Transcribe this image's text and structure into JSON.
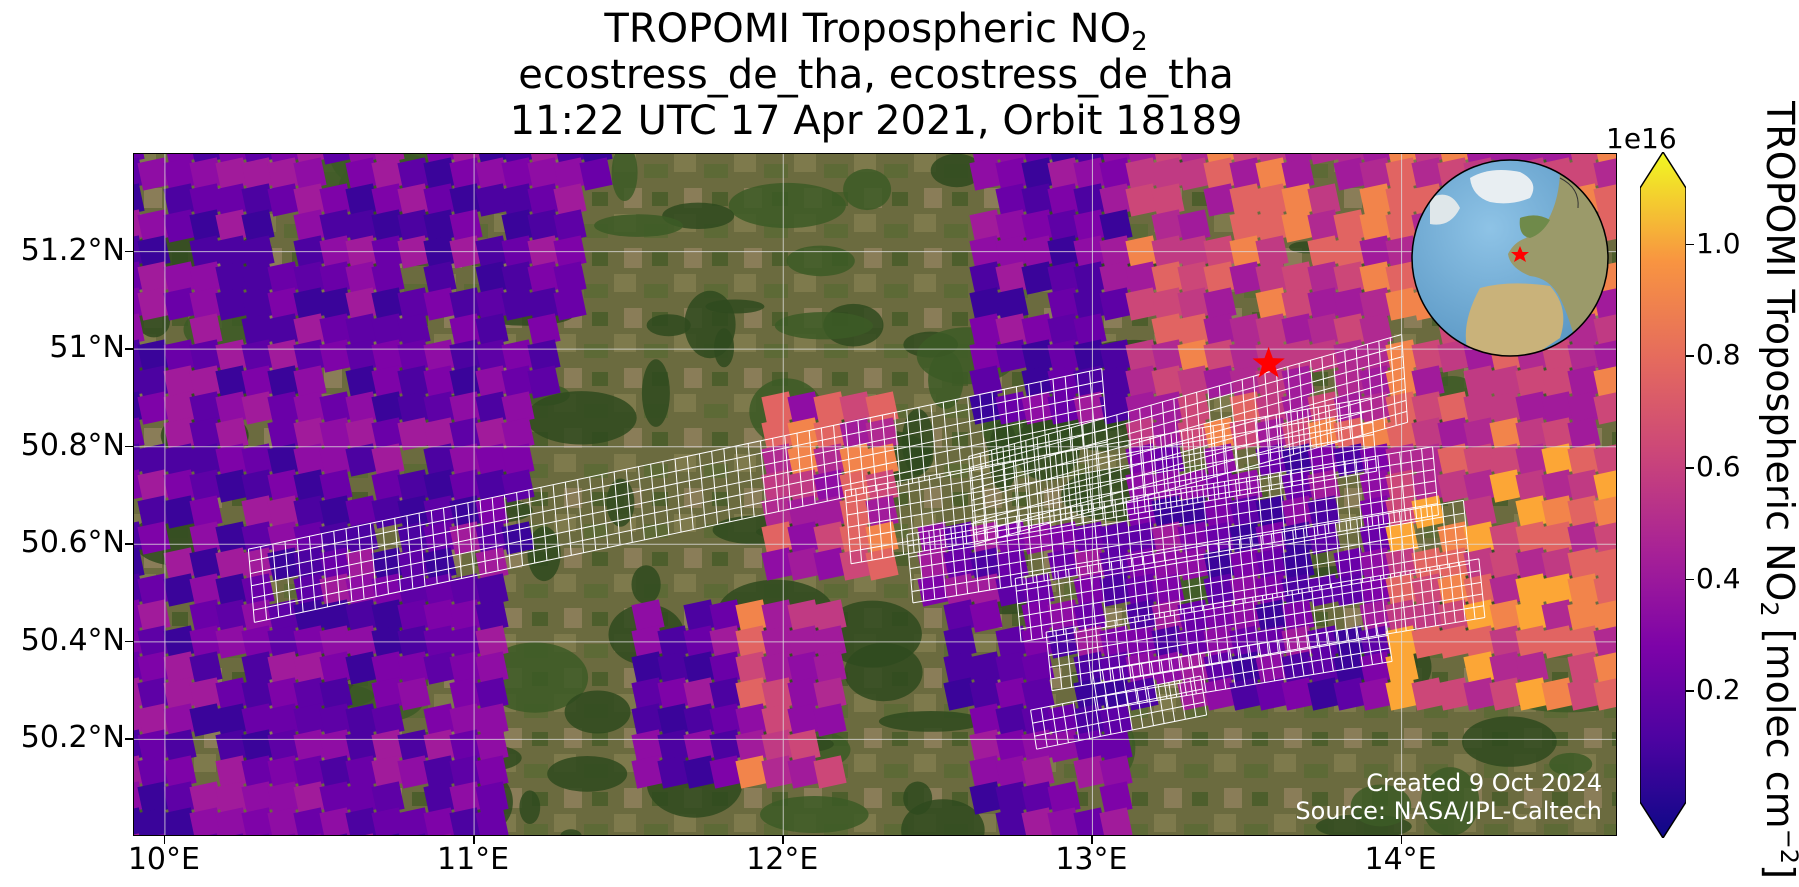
{
  "title": {
    "line1_main": "TROPOMI Tropospheric NO",
    "line1_sub": "2",
    "line2": "ecostress_de_tha, ecostress_de_tha",
    "line3": "11:22 UTC 17 Apr 2021, Orbit 18189"
  },
  "map": {
    "lon_range": [
      9.9,
      14.7
    ],
    "lat_range": [
      50.0,
      51.4
    ],
    "lat_ticks": [
      {
        "value": 51.2,
        "label": "51.2°N"
      },
      {
        "value": 51.0,
        "label": "51°N"
      },
      {
        "value": 50.8,
        "label": "50.8°N"
      },
      {
        "value": 50.6,
        "label": "50.6°N"
      },
      {
        "value": 50.4,
        "label": "50.4°N"
      },
      {
        "value": 50.2,
        "label": "50.2°N"
      }
    ],
    "lon_ticks": [
      {
        "value": 10,
        "label": "10°E"
      },
      {
        "value": 11,
        "label": "11°E"
      },
      {
        "value": 12,
        "label": "12°E"
      },
      {
        "value": 13,
        "label": "13°E"
      },
      {
        "value": 14,
        "label": "14°E"
      }
    ],
    "target_marker": {
      "lon": 13.57,
      "lat": 50.97,
      "color": "#ff0000",
      "icon": "star-icon"
    },
    "grid": true,
    "basemap_colors": {
      "forest": "#2f4a1e",
      "field": "#7a7a4a",
      "urban": "#8a7a66"
    }
  },
  "credits": {
    "created": "Created 9 Oct 2024",
    "source": "Source: NASA/JPL-Caltech"
  },
  "colorbar": {
    "exponent": "1e16",
    "label_main": "TROPOMI Tropospheric NO",
    "label_sub": "2",
    "label_units": " [molec cm",
    "label_sup": "−2",
    "label_close": "]",
    "range": [
      0.0,
      1.1
    ],
    "ticks": [
      {
        "value": 1.0,
        "label": "1.0"
      },
      {
        "value": 0.8,
        "label": "0.8"
      },
      {
        "value": 0.6,
        "label": "0.6"
      },
      {
        "value": 0.4,
        "label": "0.4"
      },
      {
        "value": 0.2,
        "label": "0.2"
      }
    ],
    "colormap": "plasma",
    "extend": "both"
  },
  "inset_globe": {
    "icon": "globe-icon",
    "marker": "star-icon"
  }
}
